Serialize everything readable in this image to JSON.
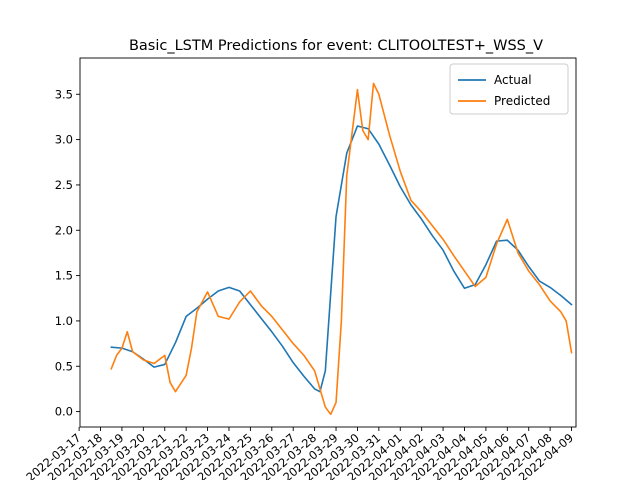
{
  "chart_data": {
    "type": "line",
    "title": "Basic_LSTM Predictions for event: CLITOOLTEST+_WSS_V",
    "xlabel": "",
    "ylabel": "",
    "grid": false,
    "legend_position": "top-right",
    "x_ticks": [
      "2022-03-17",
      "2022-03-18",
      "2022-03-19",
      "2022-03-20",
      "2022-03-21",
      "2022-03-22",
      "2022-03-23",
      "2022-03-24",
      "2022-03-25",
      "2022-03-26",
      "2022-03-27",
      "2022-03-28",
      "2022-03-29",
      "2022-03-30",
      "2022-03-31",
      "2022-04-01",
      "2022-04-02",
      "2022-04-03",
      "2022-04-04",
      "2022-04-05",
      "2022-04-06",
      "2022-04-07",
      "2022-04-08",
      "2022-04-09"
    ],
    "y_ticks": [
      0.0,
      0.5,
      1.0,
      1.5,
      2.0,
      2.5,
      3.0,
      3.5
    ],
    "xlim": [
      "2022-03-17T01:00",
      "2022-04-09T05:00"
    ],
    "ylim": [
      -0.17,
      3.9
    ],
    "series": [
      {
        "name": "Actual",
        "color": "#1f77b4",
        "x": [
          "2022-03-18T12:00",
          "2022-03-19T00:00",
          "2022-03-19T12:00",
          "2022-03-20T00:00",
          "2022-03-20T12:00",
          "2022-03-21T00:00",
          "2022-03-21T12:00",
          "2022-03-22T00:00",
          "2022-03-22T12:00",
          "2022-03-23T00:00",
          "2022-03-23T12:00",
          "2022-03-24T00:00",
          "2022-03-24T12:00",
          "2022-03-25T00:00",
          "2022-03-25T12:00",
          "2022-03-26T00:00",
          "2022-03-26T12:00",
          "2022-03-27T00:00",
          "2022-03-27T12:00",
          "2022-03-28T00:00",
          "2022-03-28T06:00",
          "2022-03-28T12:00",
          "2022-03-28T18:00",
          "2022-03-29T00:00",
          "2022-03-29T12:00",
          "2022-03-30T00:00",
          "2022-03-30T12:00",
          "2022-03-31T00:00",
          "2022-03-31T12:00",
          "2022-04-01T00:00",
          "2022-04-01T12:00",
          "2022-04-02T00:00",
          "2022-04-02T12:00",
          "2022-04-03T00:00",
          "2022-04-03T12:00",
          "2022-04-04T00:00",
          "2022-04-04T12:00",
          "2022-04-05T00:00",
          "2022-04-05T12:00",
          "2022-04-06T00:00",
          "2022-04-06T12:00",
          "2022-04-07T00:00",
          "2022-04-07T12:00",
          "2022-04-08T00:00",
          "2022-04-08T12:00",
          "2022-04-09T00:00"
        ],
        "values": [
          0.71,
          0.7,
          0.66,
          0.58,
          0.49,
          0.52,
          0.76,
          1.05,
          1.14,
          1.24,
          1.33,
          1.37,
          1.33,
          1.18,
          1.03,
          0.88,
          0.72,
          0.54,
          0.39,
          0.25,
          0.22,
          0.45,
          1.3,
          2.15,
          2.85,
          3.15,
          3.12,
          2.95,
          2.72,
          2.48,
          2.28,
          2.12,
          1.94,
          1.78,
          1.55,
          1.36,
          1.4,
          1.62,
          1.88,
          1.89,
          1.78,
          1.6,
          1.44,
          1.37,
          1.28,
          1.18
        ]
      },
      {
        "name": "Predicted",
        "color": "#ff7f0e",
        "x": [
          "2022-03-18T12:00",
          "2022-03-18T18:00",
          "2022-03-19T00:00",
          "2022-03-19T06:00",
          "2022-03-19T12:00",
          "2022-03-20T00:00",
          "2022-03-20T12:00",
          "2022-03-21T00:00",
          "2022-03-21T06:00",
          "2022-03-21T12:00",
          "2022-03-22T00:00",
          "2022-03-22T06:00",
          "2022-03-22T12:00",
          "2022-03-23T00:00",
          "2022-03-23T12:00",
          "2022-03-24T00:00",
          "2022-03-24T12:00",
          "2022-03-25T00:00",
          "2022-03-25T12:00",
          "2022-03-26T00:00",
          "2022-03-26T12:00",
          "2022-03-27T00:00",
          "2022-03-27T12:00",
          "2022-03-28T00:00",
          "2022-03-28T06:00",
          "2022-03-28T12:00",
          "2022-03-28T18:00",
          "2022-03-29T00:00",
          "2022-03-29T06:00",
          "2022-03-29T12:00",
          "2022-03-30T00:00",
          "2022-03-30T06:00",
          "2022-03-30T12:00",
          "2022-03-30T18:00",
          "2022-03-31T00:00",
          "2022-03-31T12:00",
          "2022-04-01T00:00",
          "2022-04-01T12:00",
          "2022-04-02T00:00",
          "2022-04-02T12:00",
          "2022-04-03T00:00",
          "2022-04-03T12:00",
          "2022-04-04T00:00",
          "2022-04-04T12:00",
          "2022-04-05T00:00",
          "2022-04-05T12:00",
          "2022-04-06T00:00",
          "2022-04-06T12:00",
          "2022-04-07T00:00",
          "2022-04-07T12:00",
          "2022-04-08T00:00",
          "2022-04-08T12:00",
          "2022-04-08T18:00",
          "2022-04-09T00:00"
        ],
        "values": [
          0.47,
          0.62,
          0.7,
          0.88,
          0.66,
          0.57,
          0.53,
          0.62,
          0.32,
          0.22,
          0.4,
          0.7,
          1.1,
          1.32,
          1.05,
          1.02,
          1.21,
          1.33,
          1.17,
          1.05,
          0.9,
          0.75,
          0.62,
          0.45,
          0.25,
          0.05,
          -0.03,
          0.1,
          1.0,
          2.6,
          3.55,
          3.1,
          3.0,
          3.62,
          3.5,
          3.05,
          2.65,
          2.33,
          2.2,
          2.05,
          1.9,
          1.72,
          1.55,
          1.38,
          1.48,
          1.85,
          2.12,
          1.75,
          1.55,
          1.4,
          1.22,
          1.1,
          1.0,
          0.65
        ]
      }
    ]
  }
}
